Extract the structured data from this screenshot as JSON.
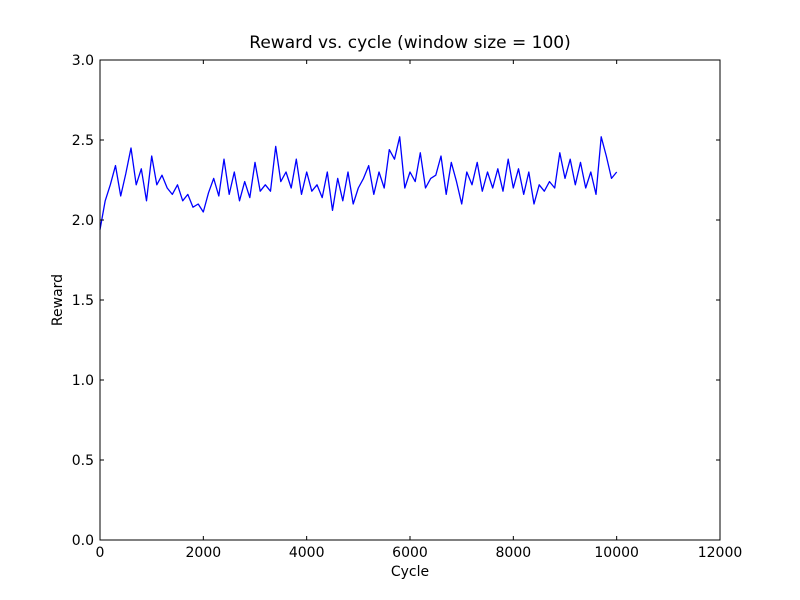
{
  "chart_data": {
    "type": "line",
    "title": "Reward vs. cycle (window size = 100)",
    "xlabel": "Cycle",
    "ylabel": "Reward",
    "xlim": [
      0,
      12000
    ],
    "ylim": [
      0.0,
      3.0
    ],
    "xticks": [
      0,
      2000,
      4000,
      6000,
      8000,
      10000,
      12000
    ],
    "xtick_labels": [
      "0",
      "2000",
      "4000",
      "6000",
      "8000",
      "10000",
      "12000"
    ],
    "yticks": [
      0.0,
      0.5,
      1.0,
      1.5,
      2.0,
      2.5,
      3.0
    ],
    "ytick_labels": [
      "0.0",
      "0.5",
      "1.0",
      "1.5",
      "2.0",
      "2.5",
      "3.0"
    ],
    "grid": false,
    "series": [
      {
        "name": "reward",
        "color": "#0000ff",
        "x": [
          0,
          100,
          200,
          300,
          400,
          500,
          600,
          700,
          800,
          900,
          1000,
          1100,
          1200,
          1300,
          1400,
          1500,
          1600,
          1700,
          1800,
          1900,
          2000,
          2100,
          2200,
          2300,
          2400,
          2500,
          2600,
          2700,
          2800,
          2900,
          3000,
          3100,
          3200,
          3300,
          3400,
          3500,
          3600,
          3700,
          3800,
          3900,
          4000,
          4100,
          4200,
          4300,
          4400,
          4500,
          4600,
          4700,
          4800,
          4900,
          5000,
          5100,
          5200,
          5300,
          5400,
          5500,
          5600,
          5700,
          5800,
          5900,
          6000,
          6100,
          6200,
          6300,
          6400,
          6500,
          6600,
          6700,
          6800,
          6900,
          7000,
          7100,
          7200,
          7300,
          7400,
          7500,
          7600,
          7700,
          7800,
          7900,
          8000,
          8100,
          8200,
          8300,
          8400,
          8500,
          8600,
          8700,
          8800,
          8900,
          9000,
          9100,
          9200,
          9300,
          9400,
          9500,
          9600,
          9700,
          9800,
          9900,
          10000
        ],
        "values": [
          1.94,
          2.12,
          2.22,
          2.34,
          2.15,
          2.29,
          2.45,
          2.22,
          2.32,
          2.12,
          2.4,
          2.22,
          2.28,
          2.2,
          2.16,
          2.22,
          2.12,
          2.16,
          2.08,
          2.1,
          2.05,
          2.17,
          2.26,
          2.15,
          2.38,
          2.16,
          2.3,
          2.12,
          2.24,
          2.14,
          2.36,
          2.18,
          2.22,
          2.18,
          2.46,
          2.24,
          2.3,
          2.2,
          2.38,
          2.16,
          2.3,
          2.18,
          2.22,
          2.14,
          2.3,
          2.06,
          2.26,
          2.12,
          2.3,
          2.1,
          2.2,
          2.26,
          2.34,
          2.16,
          2.3,
          2.2,
          2.44,
          2.38,
          2.52,
          2.2,
          2.3,
          2.24,
          2.42,
          2.2,
          2.26,
          2.28,
          2.4,
          2.16,
          2.36,
          2.24,
          2.1,
          2.3,
          2.22,
          2.36,
          2.18,
          2.3,
          2.2,
          2.32,
          2.18,
          2.38,
          2.2,
          2.32,
          2.16,
          2.3,
          2.1,
          2.22,
          2.18,
          2.24,
          2.2,
          2.42,
          2.26,
          2.38,
          2.22,
          2.36,
          2.2,
          2.3,
          2.16,
          2.52,
          2.4,
          2.26,
          2.3
        ]
      }
    ]
  }
}
